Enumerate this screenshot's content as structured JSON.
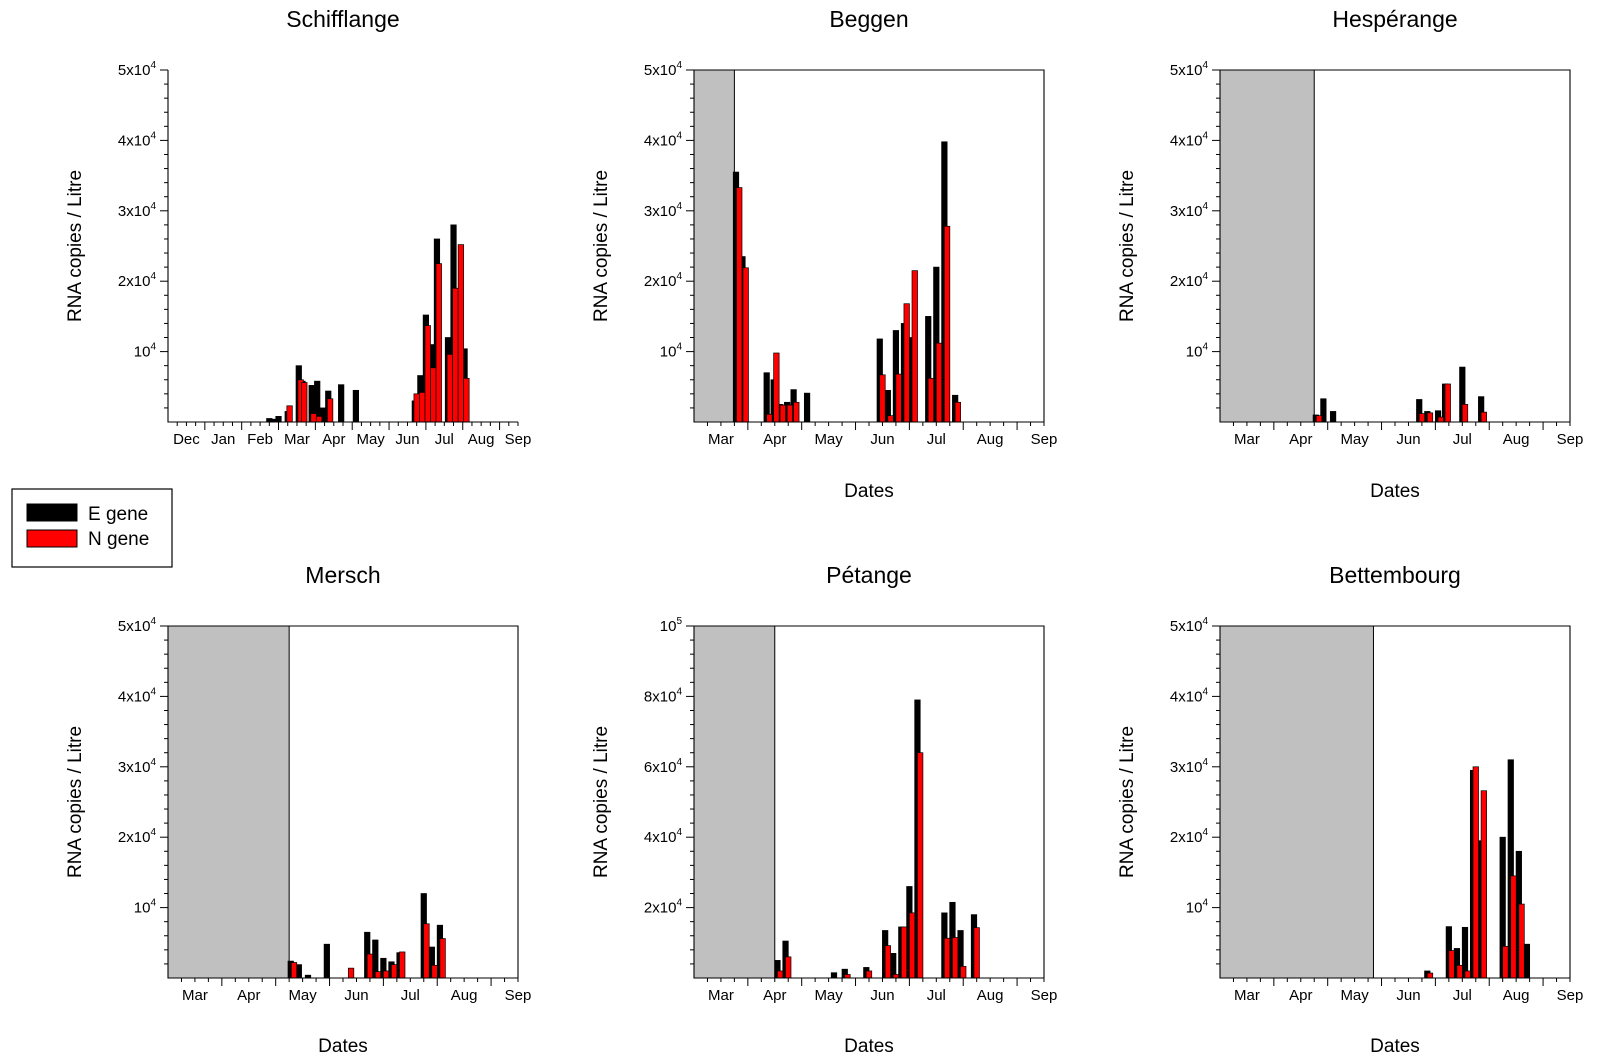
{
  "legend": {
    "entries": [
      {
        "label": "E gene",
        "color": "#000000"
      },
      {
        "label": "N gene",
        "color": "#ff0000"
      }
    ]
  },
  "colors": {
    "E": "#000000",
    "N": "#ff0000",
    "shade": "#c0c0c0"
  },
  "chart_data": [
    {
      "type": "bar",
      "title": "Schifflange",
      "ylabel": "RNA copies / Litre",
      "xlabel": "",
      "ylim": [
        0,
        50000
      ],
      "x_ticks": [
        "Dec",
        "Jan",
        "Feb",
        "Mar",
        "Apr",
        "May",
        "Jun",
        "Jul",
        "Aug",
        "Sep"
      ],
      "y_ticks": [
        {
          "value": 10000,
          "base": "10",
          "exp": "4"
        },
        {
          "value": 20000,
          "base": "2x10",
          "exp": "4"
        },
        {
          "value": 30000,
          "base": "3x10",
          "exp": "4"
        },
        {
          "value": 40000,
          "base": "4x10",
          "exp": "4"
        },
        {
          "value": 50000,
          "base": "5x10",
          "exp": "4"
        }
      ],
      "shaded_until_month": null,
      "series": [
        {
          "name": "E gene",
          "points": [
            {
              "x": 2.25,
              "y": 500
            },
            {
              "x": 2.35,
              "y": 400
            },
            {
              "x": 2.5,
              "y": 800
            },
            {
              "x": 2.75,
              "y": 1500
            },
            {
              "x": 3.05,
              "y": 8000
            },
            {
              "x": 3.15,
              "y": 5800
            },
            {
              "x": 3.4,
              "y": 5200
            },
            {
              "x": 3.55,
              "y": 5800
            },
            {
              "x": 3.7,
              "y": 2000
            },
            {
              "x": 3.85,
              "y": 4400
            },
            {
              "x": 4.2,
              "y": 5300
            },
            {
              "x": 4.6,
              "y": 4500
            },
            {
              "x": 6.2,
              "y": 3000
            },
            {
              "x": 6.35,
              "y": 6600
            },
            {
              "x": 6.5,
              "y": 15200
            },
            {
              "x": 6.65,
              "y": 11000
            },
            {
              "x": 6.8,
              "y": 26000
            },
            {
              "x": 7.1,
              "y": 12000
            },
            {
              "x": 7.25,
              "y": 28000
            },
            {
              "x": 7.4,
              "y": 14500
            },
            {
              "x": 7.55,
              "y": 10400
            }
          ]
        },
        {
          "name": "N gene",
          "points": [
            {
              "x": 2.8,
              "y": 2300
            },
            {
              "x": 3.1,
              "y": 6000
            },
            {
              "x": 3.2,
              "y": 5600
            },
            {
              "x": 3.45,
              "y": 1200
            },
            {
              "x": 3.6,
              "y": 800
            },
            {
              "x": 3.9,
              "y": 3300
            },
            {
              "x": 6.25,
              "y": 4000
            },
            {
              "x": 6.4,
              "y": 4200
            },
            {
              "x": 6.55,
              "y": 13700
            },
            {
              "x": 6.7,
              "y": 7700
            },
            {
              "x": 6.85,
              "y": 22500
            },
            {
              "x": 7.15,
              "y": 9600
            },
            {
              "x": 7.3,
              "y": 19000
            },
            {
              "x": 7.45,
              "y": 25200
            },
            {
              "x": 7.6,
              "y": 6200
            }
          ]
        }
      ]
    },
    {
      "type": "bar",
      "title": "Beggen",
      "ylabel": "RNA copies / Litre",
      "xlabel": "Dates",
      "ylim": [
        0,
        50000
      ],
      "x_ticks": [
        "Mar",
        "Apr",
        "May",
        "Jun",
        "Jul",
        "Aug",
        "Sep"
      ],
      "y_ticks": [
        {
          "value": 10000,
          "base": "10",
          "exp": "4"
        },
        {
          "value": 20000,
          "base": "2x10",
          "exp": "4"
        },
        {
          "value": 30000,
          "base": "3x10",
          "exp": "4"
        },
        {
          "value": 40000,
          "base": "4x10",
          "exp": "4"
        },
        {
          "value": 50000,
          "base": "5x10",
          "exp": "4"
        }
      ],
      "shaded_until_month": 0.25,
      "series": [
        {
          "name": "E gene",
          "points": [
            {
              "x": 0.28,
              "y": 35500
            },
            {
              "x": 0.4,
              "y": 23500
            },
            {
              "x": 0.85,
              "y": 7000
            },
            {
              "x": 0.98,
              "y": 6000
            },
            {
              "x": 1.1,
              "y": 2500
            },
            {
              "x": 1.23,
              "y": 2800
            },
            {
              "x": 1.35,
              "y": 4600
            },
            {
              "x": 1.6,
              "y": 4100
            },
            {
              "x": 2.95,
              "y": 11800
            },
            {
              "x": 3.1,
              "y": 4500
            },
            {
              "x": 3.25,
              "y": 13000
            },
            {
              "x": 3.4,
              "y": 14000
            },
            {
              "x": 3.55,
              "y": 12000
            },
            {
              "x": 3.85,
              "y": 15000
            },
            {
              "x": 4.0,
              "y": 22000
            },
            {
              "x": 4.15,
              "y": 39800
            },
            {
              "x": 4.35,
              "y": 3800
            }
          ]
        },
        {
          "name": "N gene",
          "points": [
            {
              "x": 0.34,
              "y": 33300
            },
            {
              "x": 0.46,
              "y": 21900
            },
            {
              "x": 0.9,
              "y": 1100
            },
            {
              "x": 1.03,
              "y": 9800
            },
            {
              "x": 1.15,
              "y": 2400
            },
            {
              "x": 1.28,
              "y": 2400
            },
            {
              "x": 1.4,
              "y": 2800
            },
            {
              "x": 3.0,
              "y": 6700
            },
            {
              "x": 3.15,
              "y": 900
            },
            {
              "x": 3.3,
              "y": 6800
            },
            {
              "x": 3.45,
              "y": 16800
            },
            {
              "x": 3.6,
              "y": 21500
            },
            {
              "x": 3.9,
              "y": 6200
            },
            {
              "x": 4.05,
              "y": 11200
            },
            {
              "x": 4.2,
              "y": 27800
            },
            {
              "x": 4.4,
              "y": 2800
            }
          ]
        }
      ]
    },
    {
      "type": "bar",
      "title": "Hespérange",
      "ylabel": "RNA copies / Litre",
      "xlabel": "Dates",
      "ylim": [
        0,
        50000
      ],
      "x_ticks": [
        "Mar",
        "Apr",
        "May",
        "Jun",
        "Jul",
        "Aug",
        "Sep"
      ],
      "y_ticks": [
        {
          "value": 10000,
          "base": "10",
          "exp": "4"
        },
        {
          "value": 20000,
          "base": "2x10",
          "exp": "4"
        },
        {
          "value": 30000,
          "base": "3x10",
          "exp": "4"
        },
        {
          "value": 40000,
          "base": "4x10",
          "exp": "4"
        },
        {
          "value": 50000,
          "base": "5x10",
          "exp": "4"
        }
      ],
      "shaded_until_month": 1.25,
      "series": [
        {
          "name": "E gene",
          "points": [
            {
              "x": 1.28,
              "y": 1000
            },
            {
              "x": 1.42,
              "y": 3300
            },
            {
              "x": 1.6,
              "y": 1500
            },
            {
              "x": 3.2,
              "y": 3200
            },
            {
              "x": 3.35,
              "y": 1500
            },
            {
              "x": 3.55,
              "y": 1600
            },
            {
              "x": 3.68,
              "y": 5400
            },
            {
              "x": 4.0,
              "y": 7800
            },
            {
              "x": 4.35,
              "y": 3600
            }
          ]
        },
        {
          "name": "N gene",
          "points": [
            {
              "x": 1.34,
              "y": 900
            },
            {
              "x": 3.25,
              "y": 1200
            },
            {
              "x": 3.4,
              "y": 1300
            },
            {
              "x": 3.6,
              "y": 700
            },
            {
              "x": 3.73,
              "y": 5400
            },
            {
              "x": 4.05,
              "y": 2500
            },
            {
              "x": 4.4,
              "y": 1400
            }
          ]
        }
      ]
    },
    {
      "type": "bar",
      "title": "Mersch",
      "ylabel": "RNA copies / Litre",
      "xlabel": "Dates",
      "ylim": [
        0,
        50000
      ],
      "x_ticks": [
        "Mar",
        "Apr",
        "May",
        "Jun",
        "Jul",
        "Aug",
        "Sep"
      ],
      "y_ticks": [
        {
          "value": 10000,
          "base": "10",
          "exp": "4"
        },
        {
          "value": 20000,
          "base": "2x10",
          "exp": "4"
        },
        {
          "value": 30000,
          "base": "3x10",
          "exp": "4"
        },
        {
          "value": 40000,
          "base": "4x10",
          "exp": "4"
        },
        {
          "value": 50000,
          "base": "5x10",
          "exp": "4"
        }
      ],
      "shaded_until_month": 1.75,
      "series": [
        {
          "name": "E gene",
          "points": [
            {
              "x": 1.78,
              "y": 2400
            },
            {
              "x": 1.93,
              "y": 1900
            },
            {
              "x": 2.1,
              "y": 400
            },
            {
              "x": 2.45,
              "y": 4800
            },
            {
              "x": 3.2,
              "y": 6500
            },
            {
              "x": 3.35,
              "y": 5400
            },
            {
              "x": 3.5,
              "y": 2800
            },
            {
              "x": 3.65,
              "y": 2300
            },
            {
              "x": 3.8,
              "y": 3600
            },
            {
              "x": 4.25,
              "y": 12000
            },
            {
              "x": 4.4,
              "y": 4400
            },
            {
              "x": 4.55,
              "y": 7500
            }
          ]
        },
        {
          "name": "N gene",
          "points": [
            {
              "x": 1.84,
              "y": 2200
            },
            {
              "x": 2.9,
              "y": 1400
            },
            {
              "x": 3.25,
              "y": 3400
            },
            {
              "x": 3.4,
              "y": 900
            },
            {
              "x": 3.55,
              "y": 1000
            },
            {
              "x": 3.7,
              "y": 1900
            },
            {
              "x": 3.85,
              "y": 3700
            },
            {
              "x": 4.3,
              "y": 7700
            },
            {
              "x": 4.45,
              "y": 1800
            },
            {
              "x": 4.6,
              "y": 5600
            }
          ]
        }
      ]
    },
    {
      "type": "bar",
      "title": "Pétange",
      "ylabel": "RNA copies / Litre",
      "xlabel": "Dates",
      "ylim": [
        0,
        100000
      ],
      "x_ticks": [
        "Mar",
        "Apr",
        "May",
        "Jun",
        "Jul",
        "Aug",
        "Sep"
      ],
      "y_ticks": [
        {
          "value": 20000,
          "base": "2x10",
          "exp": "4"
        },
        {
          "value": 40000,
          "base": "4x10",
          "exp": "4"
        },
        {
          "value": 60000,
          "base": "6x10",
          "exp": "4"
        },
        {
          "value": 80000,
          "base": "8x10",
          "exp": "4"
        },
        {
          "value": 100000,
          "base": "10",
          "exp": "5"
        }
      ],
      "shaded_until_month": 1.0,
      "series": [
        {
          "name": "E gene",
          "points": [
            {
              "x": 1.05,
              "y": 5000
            },
            {
              "x": 1.2,
              "y": 10500
            },
            {
              "x": 2.1,
              "y": 1500
            },
            {
              "x": 2.3,
              "y": 2500
            },
            {
              "x": 2.7,
              "y": 3000
            },
            {
              "x": 3.05,
              "y": 13500
            },
            {
              "x": 3.2,
              "y": 7000
            },
            {
              "x": 3.35,
              "y": 14500
            },
            {
              "x": 3.5,
              "y": 26000
            },
            {
              "x": 3.65,
              "y": 79000
            },
            {
              "x": 4.15,
              "y": 18500
            },
            {
              "x": 4.3,
              "y": 21500
            },
            {
              "x": 4.45,
              "y": 13500
            },
            {
              "x": 4.7,
              "y": 18000
            }
          ]
        },
        {
          "name": "N gene",
          "points": [
            {
              "x": 1.1,
              "y": 2000
            },
            {
              "x": 1.25,
              "y": 6000
            },
            {
              "x": 2.35,
              "y": 1000
            },
            {
              "x": 2.75,
              "y": 2000
            },
            {
              "x": 3.1,
              "y": 9200
            },
            {
              "x": 3.25,
              "y": 1000
            },
            {
              "x": 3.4,
              "y": 14500
            },
            {
              "x": 3.55,
              "y": 18500
            },
            {
              "x": 3.7,
              "y": 64000
            },
            {
              "x": 4.2,
              "y": 11300
            },
            {
              "x": 4.35,
              "y": 11500
            },
            {
              "x": 4.5,
              "y": 3300
            },
            {
              "x": 4.75,
              "y": 14300
            }
          ]
        }
      ]
    },
    {
      "type": "bar",
      "title": "Bettembourg",
      "ylabel": "RNA copies / Litre",
      "xlabel": "Dates",
      "ylim": [
        0,
        50000
      ],
      "x_ticks": [
        "Mar",
        "Apr",
        "May",
        "Jun",
        "Jul",
        "Aug",
        "Sep"
      ],
      "y_ticks": [
        {
          "value": 10000,
          "base": "10",
          "exp": "4"
        },
        {
          "value": 20000,
          "base": "2x10",
          "exp": "4"
        },
        {
          "value": 30000,
          "base": "3x10",
          "exp": "4"
        },
        {
          "value": 40000,
          "base": "4x10",
          "exp": "4"
        },
        {
          "value": 50000,
          "base": "5x10",
          "exp": "4"
        }
      ],
      "shaded_until_month": 2.35,
      "series": [
        {
          "name": "E gene",
          "points": [
            {
              "x": 3.35,
              "y": 1000
            },
            {
              "x": 3.75,
              "y": 7300
            },
            {
              "x": 3.9,
              "y": 4200
            },
            {
              "x": 4.05,
              "y": 7200
            },
            {
              "x": 4.2,
              "y": 29500
            },
            {
              "x": 4.35,
              "y": 19500
            },
            {
              "x": 4.75,
              "y": 20000
            },
            {
              "x": 4.9,
              "y": 31000
            },
            {
              "x": 5.05,
              "y": 18000
            },
            {
              "x": 5.2,
              "y": 4800
            }
          ]
        },
        {
          "name": "N gene",
          "points": [
            {
              "x": 3.4,
              "y": 700
            },
            {
              "x": 3.8,
              "y": 3900
            },
            {
              "x": 3.95,
              "y": 1800
            },
            {
              "x": 4.1,
              "y": 1000
            },
            {
              "x": 4.25,
              "y": 30000
            },
            {
              "x": 4.4,
              "y": 26600
            },
            {
              "x": 4.8,
              "y": 4500
            },
            {
              "x": 4.95,
              "y": 14500
            },
            {
              "x": 5.1,
              "y": 10500
            }
          ]
        }
      ]
    }
  ]
}
